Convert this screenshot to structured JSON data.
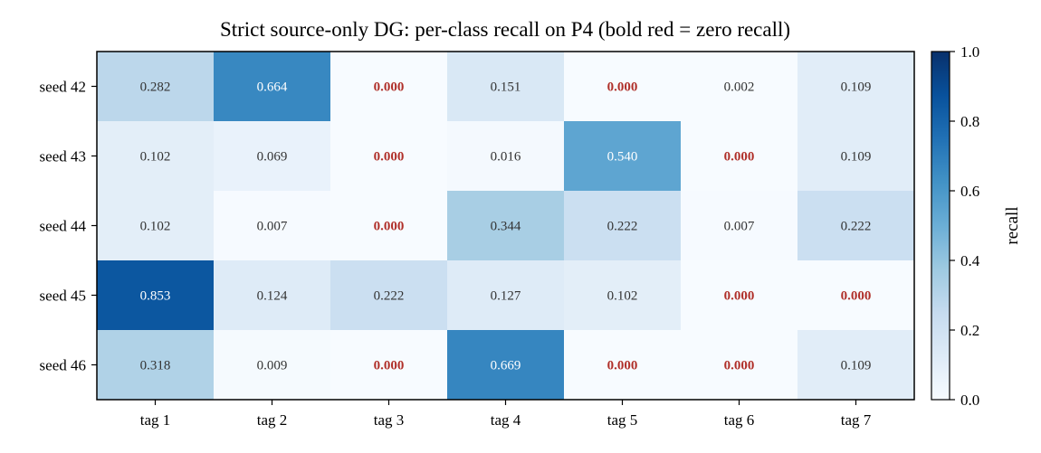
{
  "chart_data": {
    "type": "heatmap",
    "title": "Strict source-only DG: per-class recall on P4 (bold red = zero recall)",
    "rows": [
      "seed 42",
      "seed 43",
      "seed 44",
      "seed 45",
      "seed 46"
    ],
    "columns": [
      "tag 1",
      "tag 2",
      "tag 3",
      "tag 4",
      "tag 5",
      "tag 6",
      "tag 7"
    ],
    "values": [
      [
        0.282,
        0.664,
        0.0,
        0.151,
        0.0,
        0.002,
        0.109
      ],
      [
        0.102,
        0.069,
        0.0,
        0.016,
        0.54,
        0.0,
        0.109
      ],
      [
        0.102,
        0.007,
        0.0,
        0.344,
        0.222,
        0.007,
        0.222
      ],
      [
        0.853,
        0.124,
        0.222,
        0.127,
        0.102,
        0.0,
        0.0
      ],
      [
        0.318,
        0.009,
        0.0,
        0.669,
        0.0,
        0.0,
        0.109
      ]
    ],
    "value_format": "3 decimals",
    "colormap": "Blues",
    "vmin": 0.0,
    "vmax": 1.0,
    "zero_highlight_color": "#b0302a",
    "colorbar": {
      "label": "recall",
      "ticks": [
        0.0,
        0.2,
        0.4,
        0.6,
        0.8,
        1.0
      ],
      "tick_labels": [
        "0.0",
        "0.2",
        "0.4",
        "0.6",
        "0.8",
        "1.0"
      ]
    }
  }
}
